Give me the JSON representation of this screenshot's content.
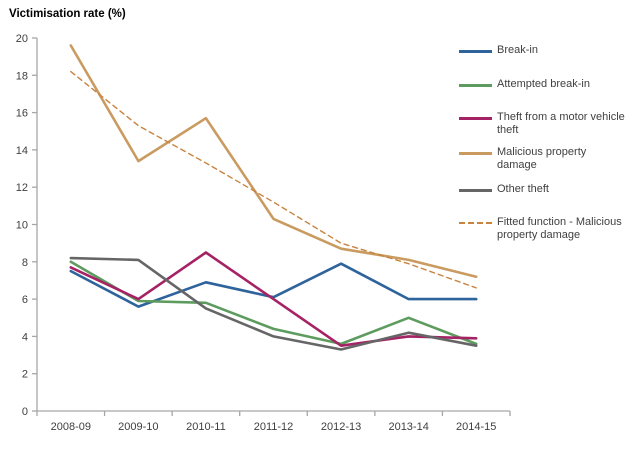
{
  "title": "Victimisation rate (%)",
  "chart_data": {
    "type": "line",
    "title": "Victimisation rate (%)",
    "xlabel": "",
    "ylabel": "Victimisation rate (%)",
    "categories": [
      "2008-09",
      "2009-10",
      "2010-11",
      "2011-12",
      "2012-13",
      "2013-14",
      "2014-15"
    ],
    "series": [
      {
        "name": "Break-in",
        "color": "#2E639C",
        "style": "solid",
        "values": [
          7.5,
          5.6,
          6.9,
          6.1,
          7.9,
          6.0,
          6.0
        ]
      },
      {
        "name": "Attempted break-in",
        "color": "#5D9C5E",
        "style": "solid",
        "values": [
          8.0,
          5.9,
          5.8,
          4.4,
          3.6,
          5.0,
          3.6
        ]
      },
      {
        "name": "Theft from a motor vehicle theft",
        "color": "#A52264",
        "style": "solid",
        "values": [
          7.7,
          6.0,
          8.5,
          6.0,
          3.5,
          4.0,
          3.9
        ]
      },
      {
        "name": "Malicious property damage",
        "color": "#C99B60",
        "style": "solid",
        "values": [
          19.6,
          13.4,
          15.7,
          10.3,
          8.7,
          8.1,
          7.2
        ]
      },
      {
        "name": "Other theft",
        "color": "#666666",
        "style": "solid",
        "values": [
          8.2,
          8.1,
          5.5,
          4.0,
          3.3,
          4.2,
          3.5
        ]
      },
      {
        "name": "Fitted function - Malicious property damage",
        "color": "#C8833F",
        "style": "dashed",
        "values": [
          18.2,
          15.3,
          13.3,
          11.2,
          9.0,
          7.9,
          6.6
        ]
      }
    ],
    "ylim": [
      0,
      20
    ],
    "ytick_step": 2,
    "grid": false,
    "legend_position": "right",
    "axis_color": "#A6A6A6",
    "text_color": "#3F3F3F"
  }
}
